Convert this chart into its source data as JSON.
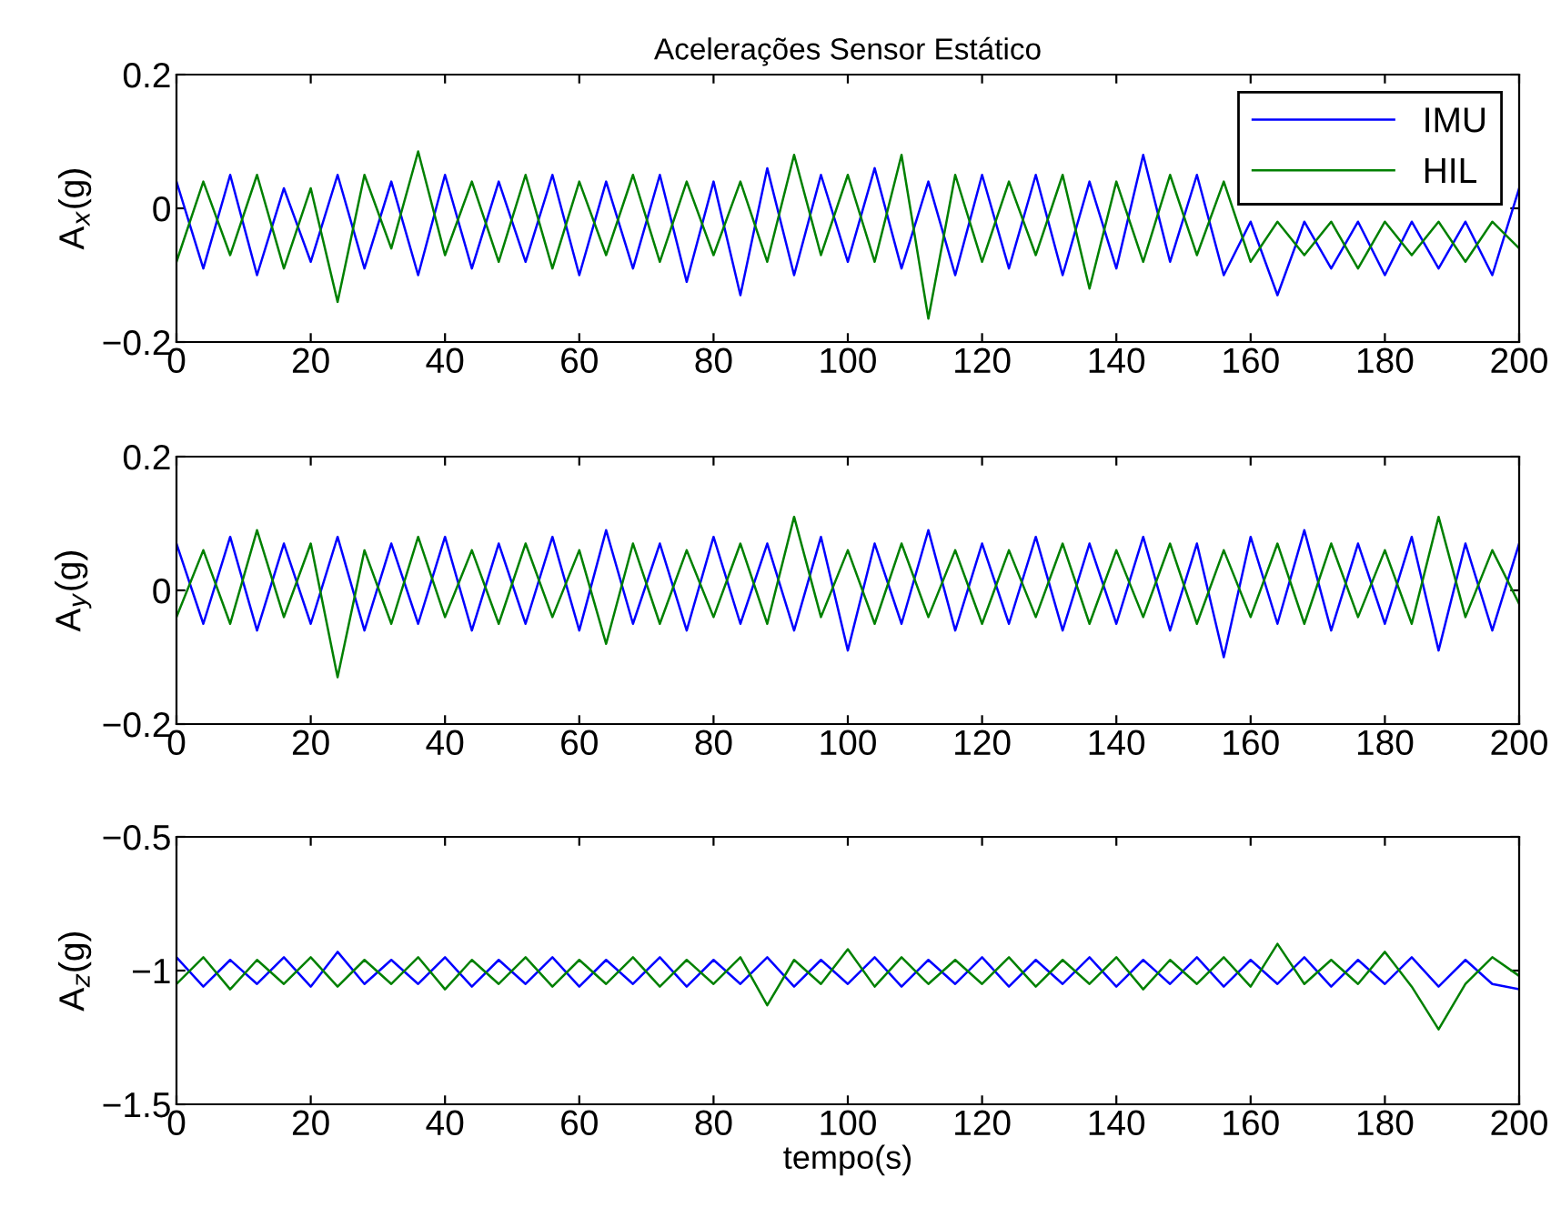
{
  "chart_data": [
    {
      "type": "line",
      "title": "Acelerações Sensor Estático",
      "ylabel": "A$_{x}$(g)",
      "xlim": [
        0,
        200
      ],
      "xticks": [
        0,
        20,
        40,
        60,
        80,
        100,
        120,
        140,
        160,
        180,
        200
      ],
      "ylim": [
        -0.2,
        0.2
      ],
      "yticks": [
        -0.2,
        0,
        0.2
      ],
      "legend": "top right",
      "grid": false,
      "x": [
        0,
        4,
        8,
        12,
        16,
        20,
        24,
        28,
        32,
        36,
        40,
        44,
        48,
        52,
        56,
        60,
        64,
        68,
        72,
        76,
        80,
        84,
        88,
        92,
        96,
        100,
        104,
        108,
        112,
        116,
        120,
        124,
        128,
        132,
        136,
        140,
        144,
        148,
        152,
        156,
        160,
        164,
        168,
        172,
        176,
        180,
        184,
        188,
        192,
        196,
        200
      ],
      "series": [
        {
          "name": "IMU",
          "color": "#0000ff",
          "values": [
            0.04,
            -0.09,
            0.05,
            -0.1,
            0.03,
            -0.08,
            0.05,
            -0.09,
            0.04,
            -0.1,
            0.05,
            -0.09,
            0.04,
            -0.08,
            0.05,
            -0.1,
            0.04,
            -0.09,
            0.05,
            -0.11,
            0.04,
            -0.13,
            0.06,
            -0.1,
            0.05,
            -0.08,
            0.06,
            -0.09,
            0.04,
            -0.1,
            0.05,
            -0.09,
            0.05,
            -0.1,
            0.04,
            -0.09,
            0.08,
            -0.08,
            0.05,
            -0.1,
            -0.02,
            -0.13,
            -0.02,
            -0.09,
            -0.02,
            -0.1,
            -0.02,
            -0.09,
            -0.02,
            -0.1,
            0.03
          ]
        },
        {
          "name": "HIL",
          "color": "#008000",
          "values": [
            -0.08,
            0.04,
            -0.07,
            0.05,
            -0.09,
            0.03,
            -0.14,
            0.05,
            -0.06,
            0.085,
            -0.07,
            0.04,
            -0.08,
            0.05,
            -0.09,
            0.04,
            -0.07,
            0.05,
            -0.08,
            0.04,
            -0.07,
            0.04,
            -0.08,
            0.08,
            -0.07,
            0.05,
            -0.08,
            0.08,
            -0.165,
            0.05,
            -0.08,
            0.04,
            -0.07,
            0.05,
            -0.12,
            0.04,
            -0.08,
            0.05,
            -0.07,
            0.04,
            -0.08,
            -0.02,
            -0.07,
            -0.02,
            -0.09,
            -0.02,
            -0.07,
            -0.02,
            -0.08,
            -0.02,
            -0.06
          ]
        }
      ]
    },
    {
      "type": "line",
      "ylabel": "A$_{y}$(g)",
      "xlim": [
        0,
        200
      ],
      "xticks": [
        0,
        20,
        40,
        60,
        80,
        100,
        120,
        140,
        160,
        180,
        200
      ],
      "ylim": [
        -0.2,
        0.2
      ],
      "yticks": [
        -0.2,
        0,
        0.2
      ],
      "grid": false,
      "x": [
        0,
        4,
        8,
        12,
        16,
        20,
        24,
        28,
        32,
        36,
        40,
        44,
        48,
        52,
        56,
        60,
        64,
        68,
        72,
        76,
        80,
        84,
        88,
        92,
        96,
        100,
        104,
        108,
        112,
        116,
        120,
        124,
        128,
        132,
        136,
        140,
        144,
        148,
        152,
        156,
        160,
        164,
        168,
        172,
        176,
        180,
        184,
        188,
        192,
        196,
        200
      ],
      "series": [
        {
          "color": "#0000ff",
          "values": [
            0.07,
            -0.05,
            0.08,
            -0.06,
            0.07,
            -0.05,
            0.08,
            -0.06,
            0.07,
            -0.05,
            0.08,
            -0.06,
            0.07,
            -0.05,
            0.08,
            -0.06,
            0.09,
            -0.05,
            0.07,
            -0.06,
            0.08,
            -0.05,
            0.07,
            -0.06,
            0.08,
            -0.09,
            0.07,
            -0.05,
            0.09,
            -0.06,
            0.07,
            -0.05,
            0.08,
            -0.06,
            0.07,
            -0.05,
            0.08,
            -0.06,
            0.07,
            -0.1,
            0.08,
            -0.05,
            0.09,
            -0.06,
            0.07,
            -0.05,
            0.08,
            -0.09,
            0.07,
            -0.06,
            0.07
          ]
        },
        {
          "color": "#008000",
          "values": [
            -0.04,
            0.06,
            -0.05,
            0.09,
            -0.04,
            0.07,
            -0.13,
            0.06,
            -0.05,
            0.08,
            -0.04,
            0.06,
            -0.05,
            0.07,
            -0.04,
            0.06,
            -0.08,
            0.07,
            -0.05,
            0.06,
            -0.04,
            0.07,
            -0.05,
            0.11,
            -0.04,
            0.06,
            -0.05,
            0.07,
            -0.04,
            0.06,
            -0.05,
            0.06,
            -0.04,
            0.07,
            -0.05,
            0.06,
            -0.04,
            0.07,
            -0.05,
            0.06,
            -0.04,
            0.07,
            -0.05,
            0.07,
            -0.04,
            0.06,
            -0.05,
            0.11,
            -0.04,
            0.06,
            -0.02
          ]
        }
      ]
    },
    {
      "type": "line",
      "ylabel": "A$_{z}$(g)",
      "xlabel": "tempo(s)",
      "xlim": [
        0,
        200
      ],
      "xticks": [
        0,
        20,
        40,
        60,
        80,
        100,
        120,
        140,
        160,
        180,
        200
      ],
      "ylim": [
        -1.5,
        -0.5
      ],
      "yticks": [
        -1.5,
        -1,
        -0.5
      ],
      "grid": false,
      "x": [
        0,
        4,
        8,
        12,
        16,
        20,
        24,
        28,
        32,
        36,
        40,
        44,
        48,
        52,
        56,
        60,
        64,
        68,
        72,
        76,
        80,
        84,
        88,
        92,
        96,
        100,
        104,
        108,
        112,
        116,
        120,
        124,
        128,
        132,
        136,
        140,
        144,
        148,
        152,
        156,
        160,
        164,
        168,
        172,
        176,
        180,
        184,
        188,
        192,
        196,
        200
      ],
      "series": [
        {
          "color": "#0000ff",
          "values": [
            -0.95,
            -1.06,
            -0.96,
            -1.05,
            -0.95,
            -1.06,
            -0.93,
            -1.05,
            -0.96,
            -1.05,
            -0.95,
            -1.06,
            -0.96,
            -1.05,
            -0.95,
            -1.06,
            -0.96,
            -1.05,
            -0.95,
            -1.06,
            -0.96,
            -1.05,
            -0.95,
            -1.06,
            -0.96,
            -1.05,
            -0.95,
            -1.06,
            -0.96,
            -1.05,
            -0.95,
            -1.06,
            -0.96,
            -1.05,
            -0.95,
            -1.06,
            -0.96,
            -1.05,
            -0.95,
            -1.06,
            -0.96,
            -1.05,
            -0.95,
            -1.06,
            -0.96,
            -1.05,
            -0.95,
            -1.06,
            -0.96,
            -1.05,
            -1.07
          ]
        },
        {
          "color": "#008000",
          "values": [
            -1.05,
            -0.95,
            -1.07,
            -0.96,
            -1.05,
            -0.95,
            -1.06,
            -0.96,
            -1.05,
            -0.95,
            -1.07,
            -0.96,
            -1.05,
            -0.95,
            -1.06,
            -0.96,
            -1.05,
            -0.95,
            -1.06,
            -0.96,
            -1.05,
            -0.95,
            -1.13,
            -0.96,
            -1.05,
            -0.92,
            -1.06,
            -0.95,
            -1.05,
            -0.96,
            -1.05,
            -0.95,
            -1.06,
            -0.96,
            -1.05,
            -0.95,
            -1.07,
            -0.96,
            -1.05,
            -0.95,
            -1.06,
            -0.9,
            -1.05,
            -0.96,
            -1.05,
            -0.93,
            -1.06,
            -1.22,
            -1.05,
            -0.95,
            -1.02
          ]
        }
      ]
    }
  ]
}
